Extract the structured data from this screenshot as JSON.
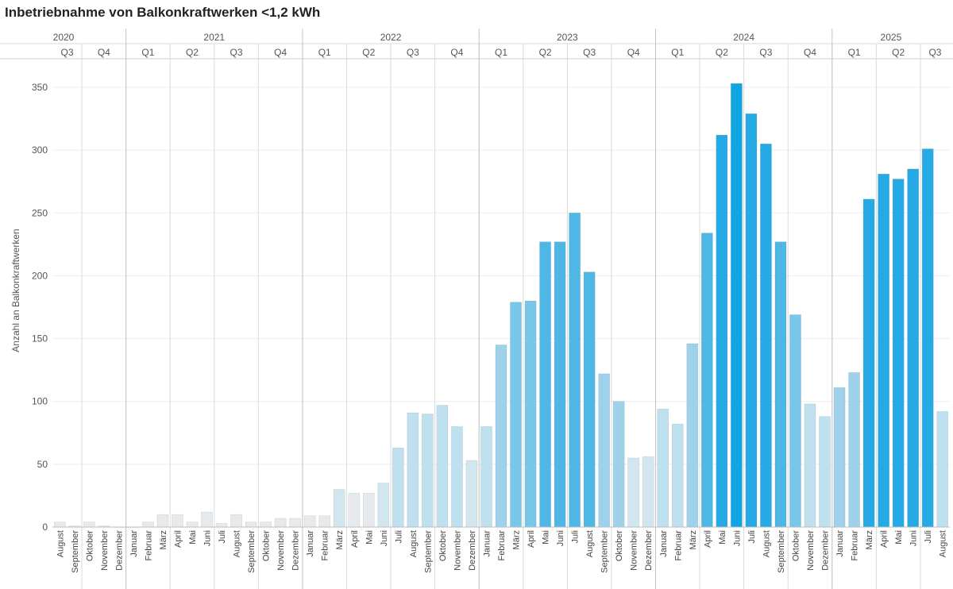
{
  "title": "Inbetriebnahme von Balkonkraftwerken <1,2 kWh",
  "colors": [
    "#e6eaec",
    "#d1e6ef",
    "#bfe0ee",
    "#9fd2ea",
    "#78c6e8",
    "#4fb7e6",
    "#26aae5",
    "#0ea5e1"
  ],
  "chart_data": {
    "type": "bar",
    "ylabel": "Anzahl an Balkonkraftwerken",
    "ylim": [
      0,
      370
    ],
    "yticks": [
      0,
      50,
      100,
      150,
      200,
      250,
      300,
      350
    ],
    "grid": true,
    "legend": "none",
    "years": [
      {
        "label": "2020",
        "start": 0,
        "end": 5
      },
      {
        "label": "2021",
        "start": 5,
        "end": 17
      },
      {
        "label": "2022",
        "start": 17,
        "end": 29
      },
      {
        "label": "2023",
        "start": 29,
        "end": 41
      },
      {
        "label": "2024",
        "start": 41,
        "end": 53
      },
      {
        "label": "2025",
        "start": 53,
        "end": 61
      }
    ],
    "quarters": [
      {
        "label": "Q3",
        "start": 0,
        "end": 2
      },
      {
        "label": "Q4",
        "start": 2,
        "end": 5
      },
      {
        "label": "Q1",
        "start": 5,
        "end": 8
      },
      {
        "label": "Q2",
        "start": 8,
        "end": 11
      },
      {
        "label": "Q3",
        "start": 11,
        "end": 14
      },
      {
        "label": "Q4",
        "start": 14,
        "end": 17
      },
      {
        "label": "Q1",
        "start": 17,
        "end": 20
      },
      {
        "label": "Q2",
        "start": 20,
        "end": 23
      },
      {
        "label": "Q3",
        "start": 23,
        "end": 26
      },
      {
        "label": "Q4",
        "start": 26,
        "end": 29
      },
      {
        "label": "Q1",
        "start": 29,
        "end": 32
      },
      {
        "label": "Q2",
        "start": 32,
        "end": 35
      },
      {
        "label": "Q3",
        "start": 35,
        "end": 38
      },
      {
        "label": "Q4",
        "start": 38,
        "end": 41
      },
      {
        "label": "Q1",
        "start": 41,
        "end": 44
      },
      {
        "label": "Q2",
        "start": 44,
        "end": 47
      },
      {
        "label": "Q3",
        "start": 47,
        "end": 50
      },
      {
        "label": "Q4",
        "start": 50,
        "end": 53
      },
      {
        "label": "Q1",
        "start": 53,
        "end": 56
      },
      {
        "label": "Q2",
        "start": 56,
        "end": 59
      },
      {
        "label": "Q3",
        "start": 59,
        "end": 61
      }
    ],
    "categories": [
      "August",
      "September",
      "Oktober",
      "November",
      "Dezember",
      "Januar",
      "Februar",
      "März",
      "April",
      "Mai",
      "Juni",
      "Juli",
      "August",
      "September",
      "Oktober",
      "November",
      "Dezember",
      "Januar",
      "Februar",
      "März",
      "April",
      "Mai",
      "Juni",
      "Juli",
      "August",
      "September",
      "Oktober",
      "November",
      "Dezember",
      "Januar",
      "Februar",
      "März",
      "April",
      "Mai",
      "Juni",
      "Juli",
      "August",
      "September",
      "Oktober",
      "November",
      "Dezember",
      "Januar",
      "Februar",
      "März",
      "April",
      "Mai",
      "Juni",
      "Juli",
      "August",
      "September",
      "Oktober",
      "November",
      "Dezember",
      "Januar",
      "Februar",
      "März",
      "April",
      "Mai",
      "Juni",
      "Juli",
      "August"
    ],
    "values": [
      4,
      1,
      4,
      1,
      0,
      0,
      4,
      10,
      10,
      4,
      12,
      3,
      10,
      4,
      4,
      7,
      7,
      9,
      9,
      30,
      27,
      27,
      35,
      63,
      91,
      90,
      97,
      80,
      53,
      80,
      145,
      179,
      180,
      227,
      227,
      250,
      203,
      122,
      100,
      55,
      56,
      94,
      82,
      146,
      234,
      312,
      353,
      329,
      305,
      227,
      169,
      98,
      88,
      111,
      123,
      261,
      281,
      277,
      285,
      301,
      92
    ]
  }
}
